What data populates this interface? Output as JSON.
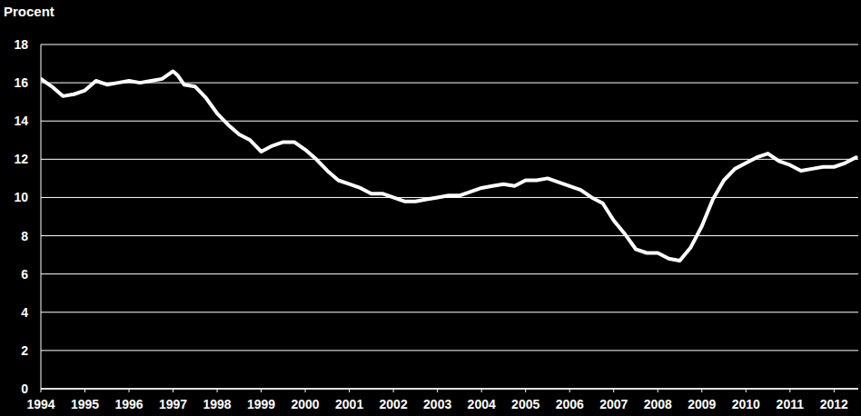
{
  "chart_data": {
    "type": "line",
    "y_label": "Procent",
    "color": "#ffffff",
    "grid": true,
    "x": [
      1994.0,
      1994.25,
      1994.5,
      1994.75,
      1995.0,
      1995.25,
      1995.5,
      1995.75,
      1996.0,
      1996.25,
      1996.5,
      1996.75,
      1997.0,
      1997.1,
      1997.25,
      1997.5,
      1997.75,
      1998.0,
      1998.25,
      1998.5,
      1998.75,
      1999.0,
      1999.25,
      1999.5,
      1999.75,
      2000.0,
      2000.25,
      2000.5,
      2000.75,
      2001.0,
      2001.25,
      2001.5,
      2001.75,
      2002.0,
      2002.25,
      2002.5,
      2002.75,
      2003.0,
      2003.25,
      2003.5,
      2003.75,
      2004.0,
      2004.25,
      2004.5,
      2004.75,
      2005.0,
      2005.25,
      2005.5,
      2005.75,
      2006.0,
      2006.25,
      2006.5,
      2006.75,
      2007.0,
      2007.25,
      2007.5,
      2007.75,
      2008.0,
      2008.25,
      2008.5,
      2008.75,
      2009.0,
      2009.25,
      2009.5,
      2009.75,
      2010.0,
      2010.25,
      2010.5,
      2010.75,
      2011.0,
      2011.25,
      2011.5,
      2011.75,
      2012.0,
      2012.25,
      2012.5
    ],
    "values": [
      16.2,
      15.8,
      15.3,
      15.4,
      15.6,
      16.1,
      15.9,
      16.0,
      16.1,
      16.0,
      16.1,
      16.2,
      16.6,
      16.4,
      15.9,
      15.8,
      15.2,
      14.4,
      13.8,
      13.3,
      13.0,
      12.4,
      12.7,
      12.9,
      12.9,
      12.5,
      12.0,
      11.4,
      10.9,
      10.7,
      10.5,
      10.2,
      10.2,
      10.0,
      9.8,
      9.8,
      9.9,
      10.0,
      10.1,
      10.1,
      10.3,
      10.5,
      10.6,
      10.7,
      10.6,
      10.9,
      10.9,
      11.0,
      10.8,
      10.6,
      10.4,
      10.0,
      9.7,
      8.8,
      8.1,
      7.3,
      7.1,
      7.1,
      6.8,
      6.7,
      7.4,
      8.5,
      9.9,
      10.9,
      11.5,
      11.8,
      12.1,
      12.3,
      11.9,
      11.7,
      11.4,
      11.5,
      11.6,
      11.6,
      11.8,
      12.1
    ],
    "xlim": [
      1994,
      2012.55
    ],
    "xticks": [
      1994,
      1995,
      1996,
      1997,
      1998,
      1999,
      2000,
      2001,
      2002,
      2003,
      2004,
      2005,
      2006,
      2007,
      2008,
      2009,
      2010,
      2011,
      2012
    ],
    "ylim": [
      0,
      18
    ],
    "yticks": [
      0,
      2,
      4,
      6,
      8,
      10,
      12,
      14,
      16,
      18
    ]
  }
}
